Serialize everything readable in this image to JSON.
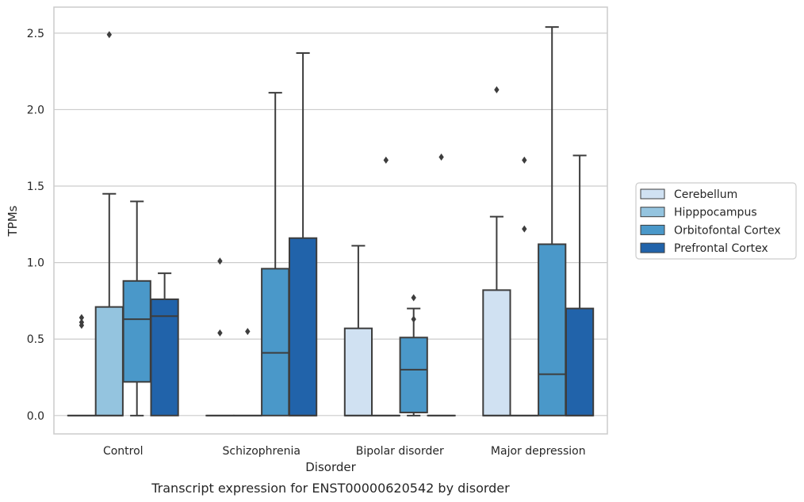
{
  "chart_data": {
    "type": "box",
    "xlabel": "Disorder",
    "ylabel": "TPMs",
    "caption": "Transcript expression for ENST00000620542 by disorder",
    "ylim": [
      -0.12,
      2.67
    ],
    "yticks": [
      0.0,
      0.5,
      1.0,
      1.5,
      2.0,
      2.5
    ],
    "ytick_labels": [
      "0.0",
      "0.5",
      "1.0",
      "1.5",
      "2.0",
      "2.5"
    ],
    "grid": "horizontal",
    "legend_position": "right",
    "categories": [
      "Control",
      "Schizophrenia",
      "Bipolar disorder",
      "Major depression"
    ],
    "series": [
      {
        "name": "Cerebellum",
        "color": "#d0e1f2",
        "boxes": [
          {
            "q1": 0,
            "median": 0,
            "q3": 0,
            "whisker_low": 0,
            "whisker_high": 0,
            "outliers": [
              0.59,
              0.61,
              0.64
            ]
          },
          {
            "q1": 0,
            "median": 0,
            "q3": 0,
            "whisker_low": 0,
            "whisker_high": 0,
            "outliers": [
              0.54,
              1.01
            ]
          },
          {
            "q1": 0,
            "median": 0,
            "q3": 0.57,
            "whisker_low": 0,
            "whisker_high": 1.11,
            "outliers": []
          },
          {
            "q1": 0,
            "median": 0,
            "q3": 0.82,
            "whisker_low": 0,
            "whisker_high": 1.3,
            "outliers": [
              2.13
            ]
          }
        ]
      },
      {
        "name": "Hipppocampus",
        "color": "#94c4df",
        "boxes": [
          {
            "q1": 0,
            "median": 0,
            "q3": 0.71,
            "whisker_low": 0,
            "whisker_high": 1.45,
            "outliers": [
              2.49
            ]
          },
          {
            "q1": 0,
            "median": 0,
            "q3": 0,
            "whisker_low": 0,
            "whisker_high": 0,
            "outliers": [
              0.55
            ]
          },
          {
            "q1": 0,
            "median": 0,
            "q3": 0,
            "whisker_low": 0,
            "whisker_high": 0,
            "outliers": [
              1.67
            ]
          },
          {
            "q1": 0,
            "median": 0,
            "q3": 0,
            "whisker_low": 0,
            "whisker_high": 0,
            "outliers": [
              1.22,
              1.67
            ]
          }
        ]
      },
      {
        "name": "Orbitofontal Cortex",
        "color": "#4a98c9",
        "boxes": [
          {
            "q1": 0.22,
            "median": 0.63,
            "q3": 0.88,
            "whisker_low": 0,
            "whisker_high": 1.4,
            "outliers": []
          },
          {
            "q1": 0,
            "median": 0.41,
            "q3": 0.96,
            "whisker_low": 0,
            "whisker_high": 2.11,
            "outliers": []
          },
          {
            "q1": 0.02,
            "median": 0.3,
            "q3": 0.51,
            "whisker_low": 0,
            "whisker_high": 0.7,
            "outliers": [
              0.63,
              0.77
            ]
          },
          {
            "q1": 0,
            "median": 0.27,
            "q3": 1.12,
            "whisker_low": 0,
            "whisker_high": 2.54,
            "outliers": []
          }
        ]
      },
      {
        "name": "Prefrontal Cortex",
        "color": "#2163aa",
        "boxes": [
          {
            "q1": 0,
            "median": 0.65,
            "q3": 0.76,
            "whisker_low": 0,
            "whisker_high": 0.93,
            "outliers": []
          },
          {
            "q1": 0,
            "median": 0,
            "q3": 1.16,
            "whisker_low": 0,
            "whisker_high": 2.37,
            "outliers": []
          },
          {
            "q1": 0,
            "median": 0,
            "q3": 0,
            "whisker_low": 0,
            "whisker_high": 0,
            "outliers": [
              1.69
            ]
          },
          {
            "q1": 0,
            "median": 0,
            "q3": 0.7,
            "whisker_low": 0,
            "whisker_high": 1.7,
            "outliers": []
          }
        ]
      }
    ]
  }
}
